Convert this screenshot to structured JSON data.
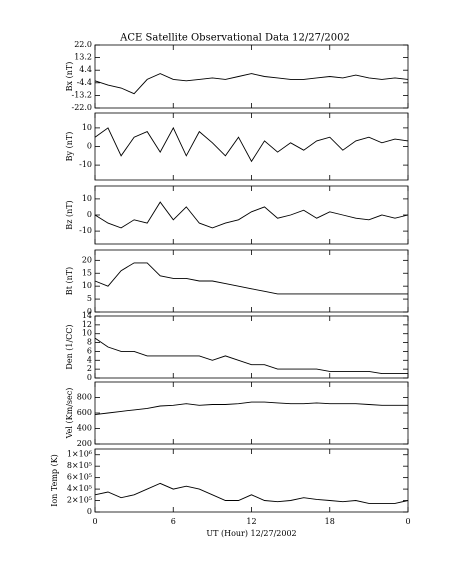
{
  "chart_data": [
    {
      "type": "line",
      "title": "ACE Satellite Observational Data   12/27/2002",
      "ylabel": "Bx (nT)",
      "x": [
        0,
        1,
        2,
        3,
        4,
        5,
        6,
        7,
        8,
        9,
        10,
        11,
        12,
        13,
        14,
        15,
        16,
        17,
        18,
        19,
        20,
        21,
        22,
        23,
        24
      ],
      "values": [
        -3,
        -6,
        -8,
        -12,
        -2,
        2,
        -2,
        -3,
        -2,
        -1,
        -2,
        0,
        2,
        0,
        -1,
        -2,
        -2,
        -1,
        0,
        -1,
        1,
        -1,
        -2,
        -1,
        -2
      ],
      "color": "#000000",
      "xlim": [
        0,
        24
      ],
      "ylim": [
        -22,
        22
      ],
      "yticks": [
        {
          "value": -22,
          "label": "-22.0"
        },
        -13.2,
        -4.4,
        4.4,
        13.2,
        {
          "value": 22,
          "label": "22.0"
        }
      ]
    },
    {
      "type": "line",
      "ylabel": "By (nT)",
      "x": [
        0,
        1,
        2,
        3,
        4,
        5,
        6,
        7,
        8,
        9,
        10,
        11,
        12,
        13,
        14,
        15,
        16,
        17,
        18,
        19,
        20,
        21,
        22,
        23,
        24
      ],
      "values": [
        5,
        10,
        -5,
        5,
        8,
        -3,
        10,
        -5,
        8,
        2,
        -5,
        5,
        -8,
        3,
        -3,
        2,
        -2,
        3,
        5,
        -2,
        3,
        5,
        2,
        4,
        3
      ],
      "color": "#000000",
      "xlim": [
        0,
        24
      ],
      "ylim": [
        -18,
        18
      ],
      "yticks": [
        -10,
        0,
        10
      ]
    },
    {
      "type": "line",
      "ylabel": "Bz (nT)",
      "x": [
        0,
        1,
        2,
        3,
        4,
        5,
        6,
        7,
        8,
        9,
        10,
        11,
        12,
        13,
        14,
        15,
        16,
        17,
        18,
        19,
        20,
        21,
        22,
        23,
        24
      ],
      "values": [
        0,
        -5,
        -8,
        -3,
        -5,
        8,
        -3,
        5,
        -5,
        -8,
        -5,
        -3,
        2,
        5,
        -2,
        0,
        3,
        -2,
        2,
        0,
        -2,
        -3,
        0,
        -2,
        0
      ],
      "color": "#000000",
      "xlim": [
        0,
        24
      ],
      "ylim": [
        -18,
        18
      ],
      "yticks": [
        -10,
        0,
        10
      ]
    },
    {
      "type": "line",
      "ylabel": "Bt (nT)",
      "x": [
        0,
        1,
        2,
        3,
        4,
        5,
        6,
        7,
        8,
        9,
        10,
        11,
        12,
        13,
        14,
        15,
        16,
        17,
        18,
        19,
        20,
        21,
        22,
        23,
        24
      ],
      "values": [
        12,
        10,
        16,
        19,
        19,
        14,
        13,
        13,
        12,
        12,
        11,
        10,
        9,
        8,
        7,
        7,
        7,
        7,
        7,
        7,
        7,
        7,
        7,
        7,
        7
      ],
      "color": "#000000",
      "xlim": [
        0,
        24
      ],
      "ylim": [
        0,
        24
      ],
      "yticks": [
        0,
        5,
        10,
        15,
        20
      ]
    },
    {
      "type": "line",
      "ylabel": "Den (1/CC)",
      "x": [
        0,
        1,
        2,
        3,
        4,
        5,
        6,
        7,
        8,
        9,
        10,
        11,
        12,
        13,
        14,
        15,
        16,
        17,
        18,
        19,
        20,
        21,
        22,
        23,
        24
      ],
      "values": [
        9,
        7,
        6,
        6,
        5,
        5,
        5,
        5,
        5,
        4,
        5,
        4,
        3,
        3,
        2,
        2,
        2,
        2,
        1.5,
        1.5,
        1.5,
        1.5,
        1,
        1,
        1
      ],
      "color": "#000000",
      "xlim": [
        0,
        24
      ],
      "ylim": [
        0,
        14
      ],
      "yticks": [
        0,
        2,
        4,
        6,
        8,
        10,
        12,
        14
      ]
    },
    {
      "type": "line",
      "ylabel": "Vel (Km/sec)",
      "x": [
        0,
        1,
        2,
        3,
        4,
        5,
        6,
        7,
        8,
        9,
        10,
        11,
        12,
        13,
        14,
        15,
        16,
        17,
        18,
        19,
        20,
        21,
        22,
        23,
        24
      ],
      "values": [
        580,
        600,
        620,
        640,
        660,
        690,
        700,
        720,
        700,
        710,
        710,
        720,
        740,
        740,
        730,
        720,
        720,
        730,
        720,
        720,
        720,
        710,
        700,
        700,
        700
      ],
      "color": "#000000",
      "xlim": [
        0,
        24
      ],
      "ylim": [
        200,
        1000
      ],
      "yticks": [
        200,
        400,
        600,
        800
      ]
    },
    {
      "type": "line",
      "ylabel": "Ion Temp (K)",
      "xlabel": "UT (Hour)  12/27/2002",
      "x": [
        0,
        1,
        2,
        3,
        4,
        5,
        6,
        7,
        8,
        9,
        10,
        11,
        12,
        13,
        14,
        15,
        16,
        17,
        18,
        19,
        20,
        21,
        22,
        23,
        24
      ],
      "values": [
        300000,
        350000,
        250000,
        300000,
        400000,
        500000,
        400000,
        450000,
        400000,
        300000,
        200000,
        200000,
        300000,
        200000,
        180000,
        200000,
        250000,
        220000,
        200000,
        180000,
        200000,
        150000,
        150000,
        150000,
        200000
      ],
      "color": "#000000",
      "xlim": [
        0,
        24
      ],
      "ylim": [
        0,
        1100000
      ],
      "yticks": [
        0,
        {
          "value": 200000,
          "label": "2×10⁵"
        },
        {
          "value": 400000,
          "label": "4×10⁵"
        },
        {
          "value": 600000,
          "label": "6×10⁵"
        },
        {
          "value": 800000,
          "label": "8×10⁵"
        },
        {
          "value": 1000000,
          "label": "1×10⁶"
        }
      ],
      "xticks": [
        0,
        6,
        12,
        18,
        {
          "value": 24,
          "label": "0"
        }
      ]
    }
  ]
}
